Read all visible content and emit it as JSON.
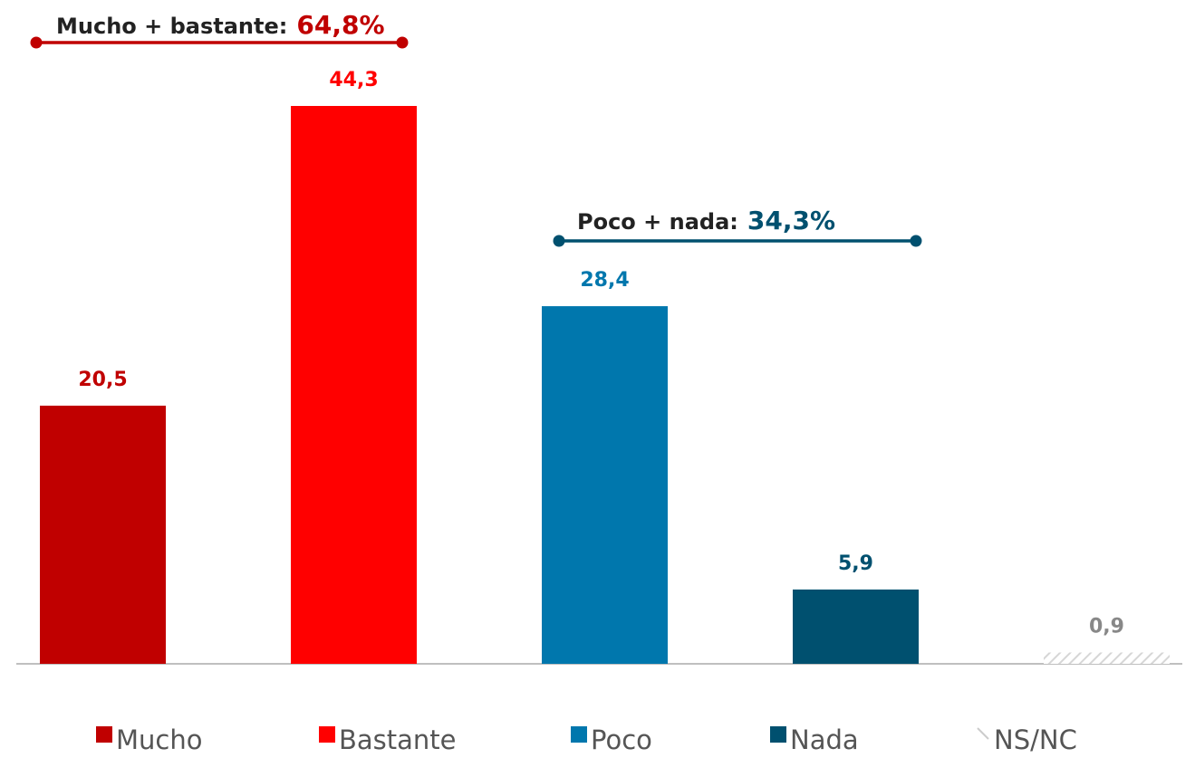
{
  "chart_data": {
    "type": "bar",
    "categories": [
      "Mucho",
      "Bastante",
      "Poco",
      "Nada",
      "NS/NC"
    ],
    "values": [
      20.5,
      44.3,
      28.4,
      5.9,
      0.9
    ],
    "value_labels": [
      "20,5",
      "44,3",
      "28,4",
      "5,9",
      "0,9"
    ],
    "colors": [
      "#c00000",
      "#ff0000",
      "#0077ad",
      "#00506f",
      "#dddddd"
    ],
    "ylim": [
      0,
      44.3
    ],
    "grid": false,
    "legend_position": "bottom",
    "legend": [
      "Mucho",
      "Bastante",
      "Poco",
      "Nada",
      "NS/NC"
    ],
    "groups": [
      {
        "label": "Mucho + bastante:",
        "total": "64,8%",
        "color": "#c00000",
        "text_color": "#c00000",
        "from": 0,
        "to": 1
      },
      {
        "label": "Poco + nada:",
        "total": "34,3%",
        "color": "#00506f",
        "text_color": "#00506f",
        "from": 2,
        "to": 3
      }
    ],
    "title": "",
    "xlabel": "",
    "ylabel": ""
  }
}
